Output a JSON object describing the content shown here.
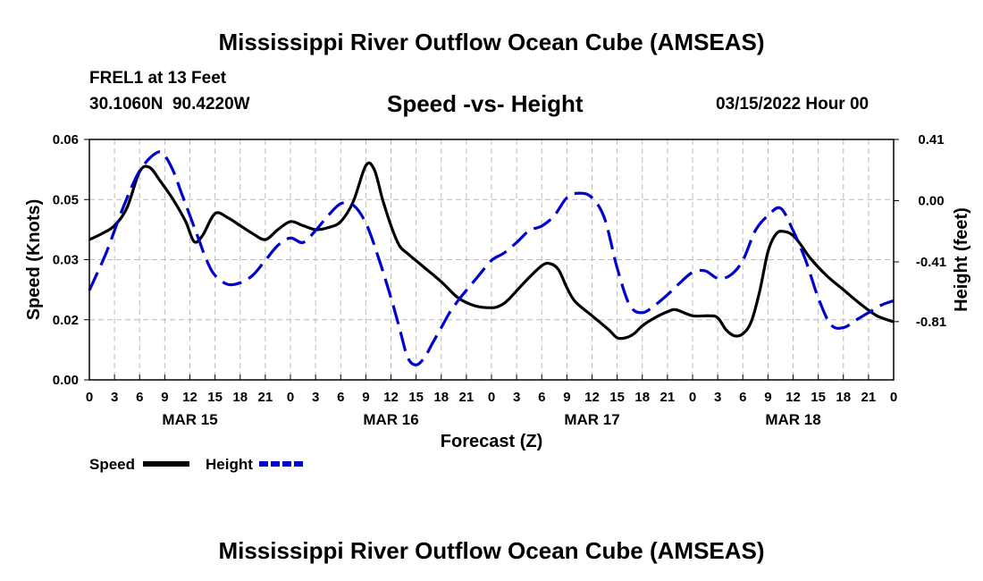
{
  "page": {
    "title": "Mississippi River Outflow Ocean Cube (AMSEAS)",
    "footer_title": "Mississippi River Outflow Ocean Cube (AMSEAS)",
    "station": "FREL1 at 13 Feet",
    "coords": "30.1060N  90.4220W",
    "subtitle": "Speed -vs- Height",
    "date": "03/15/2022 Hour 00"
  },
  "colors": {
    "speed": "#000000",
    "height": "#0000cc",
    "grid": "#bbbbbb"
  },
  "chart_data": {
    "type": "line",
    "title": "Speed -vs- Height",
    "xlabel": "Forecast (Z)",
    "ylabel": "Speed (Knots)",
    "y2label": "Height (feet)",
    "x_hours_range": [
      0,
      96
    ],
    "ylim": [
      0,
      0.06
    ],
    "y2lim": [
      -1.2,
      0.41
    ],
    "y_ticks": [
      {
        "label": "0.00",
        "value": 0
      },
      {
        "label": "0.02",
        "value": 0.015
      },
      {
        "label": "0.03",
        "value": 0.03
      },
      {
        "label": "0.05",
        "value": 0.045
      },
      {
        "label": "0.06",
        "value": 0.06
      }
    ],
    "y2_ticks": [
      {
        "label": "0.41",
        "value": 0.41
      },
      {
        "label": "0.00",
        "value": 0.0
      },
      {
        "label": "-0.41",
        "value": -0.41
      },
      {
        "label": "-0.81",
        "value": -0.81
      }
    ],
    "x_tick_labels": [
      "0",
      "3",
      "6",
      "9",
      "12",
      "15",
      "18",
      "21",
      "0",
      "3",
      "6",
      "9",
      "12",
      "15",
      "18",
      "21",
      "0",
      "3",
      "6",
      "9",
      "12",
      "15",
      "18",
      "21",
      "0",
      "3",
      "6",
      "9",
      "12",
      "15",
      "18",
      "21",
      "0"
    ],
    "date_labels": [
      {
        "label": "MAR 15",
        "hour": 12
      },
      {
        "label": "MAR 16",
        "hour": 36
      },
      {
        "label": "MAR 17",
        "hour": 60
      },
      {
        "label": "MAR 18",
        "hour": 84
      }
    ],
    "legend": [
      {
        "name": "Speed",
        "color": "#000000",
        "dash": "solid"
      },
      {
        "name": "Height",
        "color": "#0000cc",
        "dash": "dashed"
      }
    ],
    "series": [
      {
        "name": "Speed",
        "axis": "left",
        "points": [
          [
            0,
            0.035
          ],
          [
            1.5,
            0.0365
          ],
          [
            3,
            0.0385
          ],
          [
            4.5,
            0.043
          ],
          [
            6,
            0.052
          ],
          [
            7.2,
            0.053
          ],
          [
            8.5,
            0.0495
          ],
          [
            10,
            0.045
          ],
          [
            11.5,
            0.0395
          ],
          [
            12.5,
            0.0345
          ],
          [
            13.5,
            0.036
          ],
          [
            15,
            0.0415
          ],
          [
            16.5,
            0.0405
          ],
          [
            18,
            0.0385
          ],
          [
            19.5,
            0.0365
          ],
          [
            21,
            0.035
          ],
          [
            22.5,
            0.0375
          ],
          [
            24,
            0.0395
          ],
          [
            25.5,
            0.0385
          ],
          [
            27,
            0.0375
          ],
          [
            28.5,
            0.038
          ],
          [
            30,
            0.0395
          ],
          [
            31.5,
            0.0445
          ],
          [
            33,
            0.0535
          ],
          [
            34,
            0.0525
          ],
          [
            35,
            0.045
          ],
          [
            36,
            0.0385
          ],
          [
            37,
            0.0335
          ],
          [
            38,
            0.0315
          ],
          [
            40,
            0.028
          ],
          [
            42,
            0.0245
          ],
          [
            44,
            0.0205
          ],
          [
            46,
            0.0185
          ],
          [
            48,
            0.018
          ],
          [
            49,
            0.0185
          ],
          [
            50,
            0.02
          ],
          [
            52,
            0.0245
          ],
          [
            54,
            0.0285
          ],
          [
            55,
            0.029
          ],
          [
            56,
            0.0275
          ],
          [
            57,
            0.023
          ],
          [
            58,
            0.0195
          ],
          [
            60,
            0.016
          ],
          [
            62,
            0.0125
          ],
          [
            63,
            0.0105
          ],
          [
            64,
            0.0105
          ],
          [
            65,
            0.0115
          ],
          [
            66,
            0.0135
          ],
          [
            67.5,
            0.0155
          ],
          [
            69,
            0.017
          ],
          [
            70,
            0.0175
          ],
          [
            72,
            0.016
          ],
          [
            74,
            0.016
          ],
          [
            75,
            0.0155
          ],
          [
            76,
            0.0125
          ],
          [
            77,
            0.011
          ],
          [
            78,
            0.0115
          ],
          [
            79,
            0.0145
          ],
          [
            80,
            0.022
          ],
          [
            81,
            0.032
          ],
          [
            82,
            0.0365
          ],
          [
            83,
            0.037
          ],
          [
            84,
            0.036
          ],
          [
            85,
            0.0335
          ],
          [
            86,
            0.0305
          ],
          [
            88,
            0.026
          ],
          [
            90,
            0.0225
          ],
          [
            92,
            0.019
          ],
          [
            94,
            0.016
          ],
          [
            96,
            0.0145
          ]
        ]
      },
      {
        "name": "Height",
        "axis": "right",
        "points": [
          [
            0,
            -0.6
          ],
          [
            2,
            -0.35
          ],
          [
            4,
            -0.05
          ],
          [
            6,
            0.2
          ],
          [
            8,
            0.32
          ],
          [
            9,
            0.3
          ],
          [
            10,
            0.2
          ],
          [
            11,
            0.05
          ],
          [
            12,
            -0.1
          ],
          [
            13,
            -0.25
          ],
          [
            14,
            -0.4
          ],
          [
            15,
            -0.5
          ],
          [
            16.5,
            -0.56
          ],
          [
            18,
            -0.55
          ],
          [
            19.5,
            -0.5
          ],
          [
            21,
            -0.4
          ],
          [
            22.5,
            -0.3
          ],
          [
            24,
            -0.25
          ],
          [
            25.5,
            -0.28
          ],
          [
            27,
            -0.2
          ],
          [
            28.5,
            -0.1
          ],
          [
            30,
            -0.02
          ],
          [
            31.5,
            -0.03
          ],
          [
            33,
            -0.15
          ],
          [
            34.5,
            -0.38
          ],
          [
            36,
            -0.65
          ],
          [
            37,
            -0.85
          ],
          [
            38,
            -1.05
          ],
          [
            39,
            -1.1
          ],
          [
            40,
            -1.05
          ],
          [
            41,
            -0.95
          ],
          [
            42,
            -0.85
          ],
          [
            43,
            -0.75
          ],
          [
            44,
            -0.67
          ],
          [
            45,
            -0.6
          ],
          [
            46.5,
            -0.5
          ],
          [
            48,
            -0.4
          ],
          [
            49.5,
            -0.35
          ],
          [
            51,
            -0.28
          ],
          [
            52.5,
            -0.2
          ],
          [
            54,
            -0.17
          ],
          [
            55.5,
            -0.1
          ],
          [
            57,
            0.02
          ],
          [
            58.5,
            0.05
          ],
          [
            60,
            0.02
          ],
          [
            61.5,
            -0.12
          ],
          [
            63,
            -0.45
          ],
          [
            64.5,
            -0.7
          ],
          [
            66,
            -0.75
          ],
          [
            67.5,
            -0.7
          ],
          [
            69,
            -0.63
          ],
          [
            70.5,
            -0.55
          ],
          [
            72,
            -0.48
          ],
          [
            73.5,
            -0.47
          ],
          [
            75,
            -0.52
          ],
          [
            76.5,
            -0.5
          ],
          [
            78,
            -0.4
          ],
          [
            79.5,
            -0.2
          ],
          [
            81,
            -0.1
          ],
          [
            82.5,
            -0.05
          ],
          [
            84,
            -0.2
          ],
          [
            85.5,
            -0.4
          ],
          [
            87,
            -0.65
          ],
          [
            88.5,
            -0.83
          ],
          [
            90,
            -0.85
          ],
          [
            91.5,
            -0.8
          ],
          [
            93,
            -0.75
          ],
          [
            94.5,
            -0.7
          ],
          [
            96,
            -0.67
          ]
        ]
      }
    ]
  }
}
